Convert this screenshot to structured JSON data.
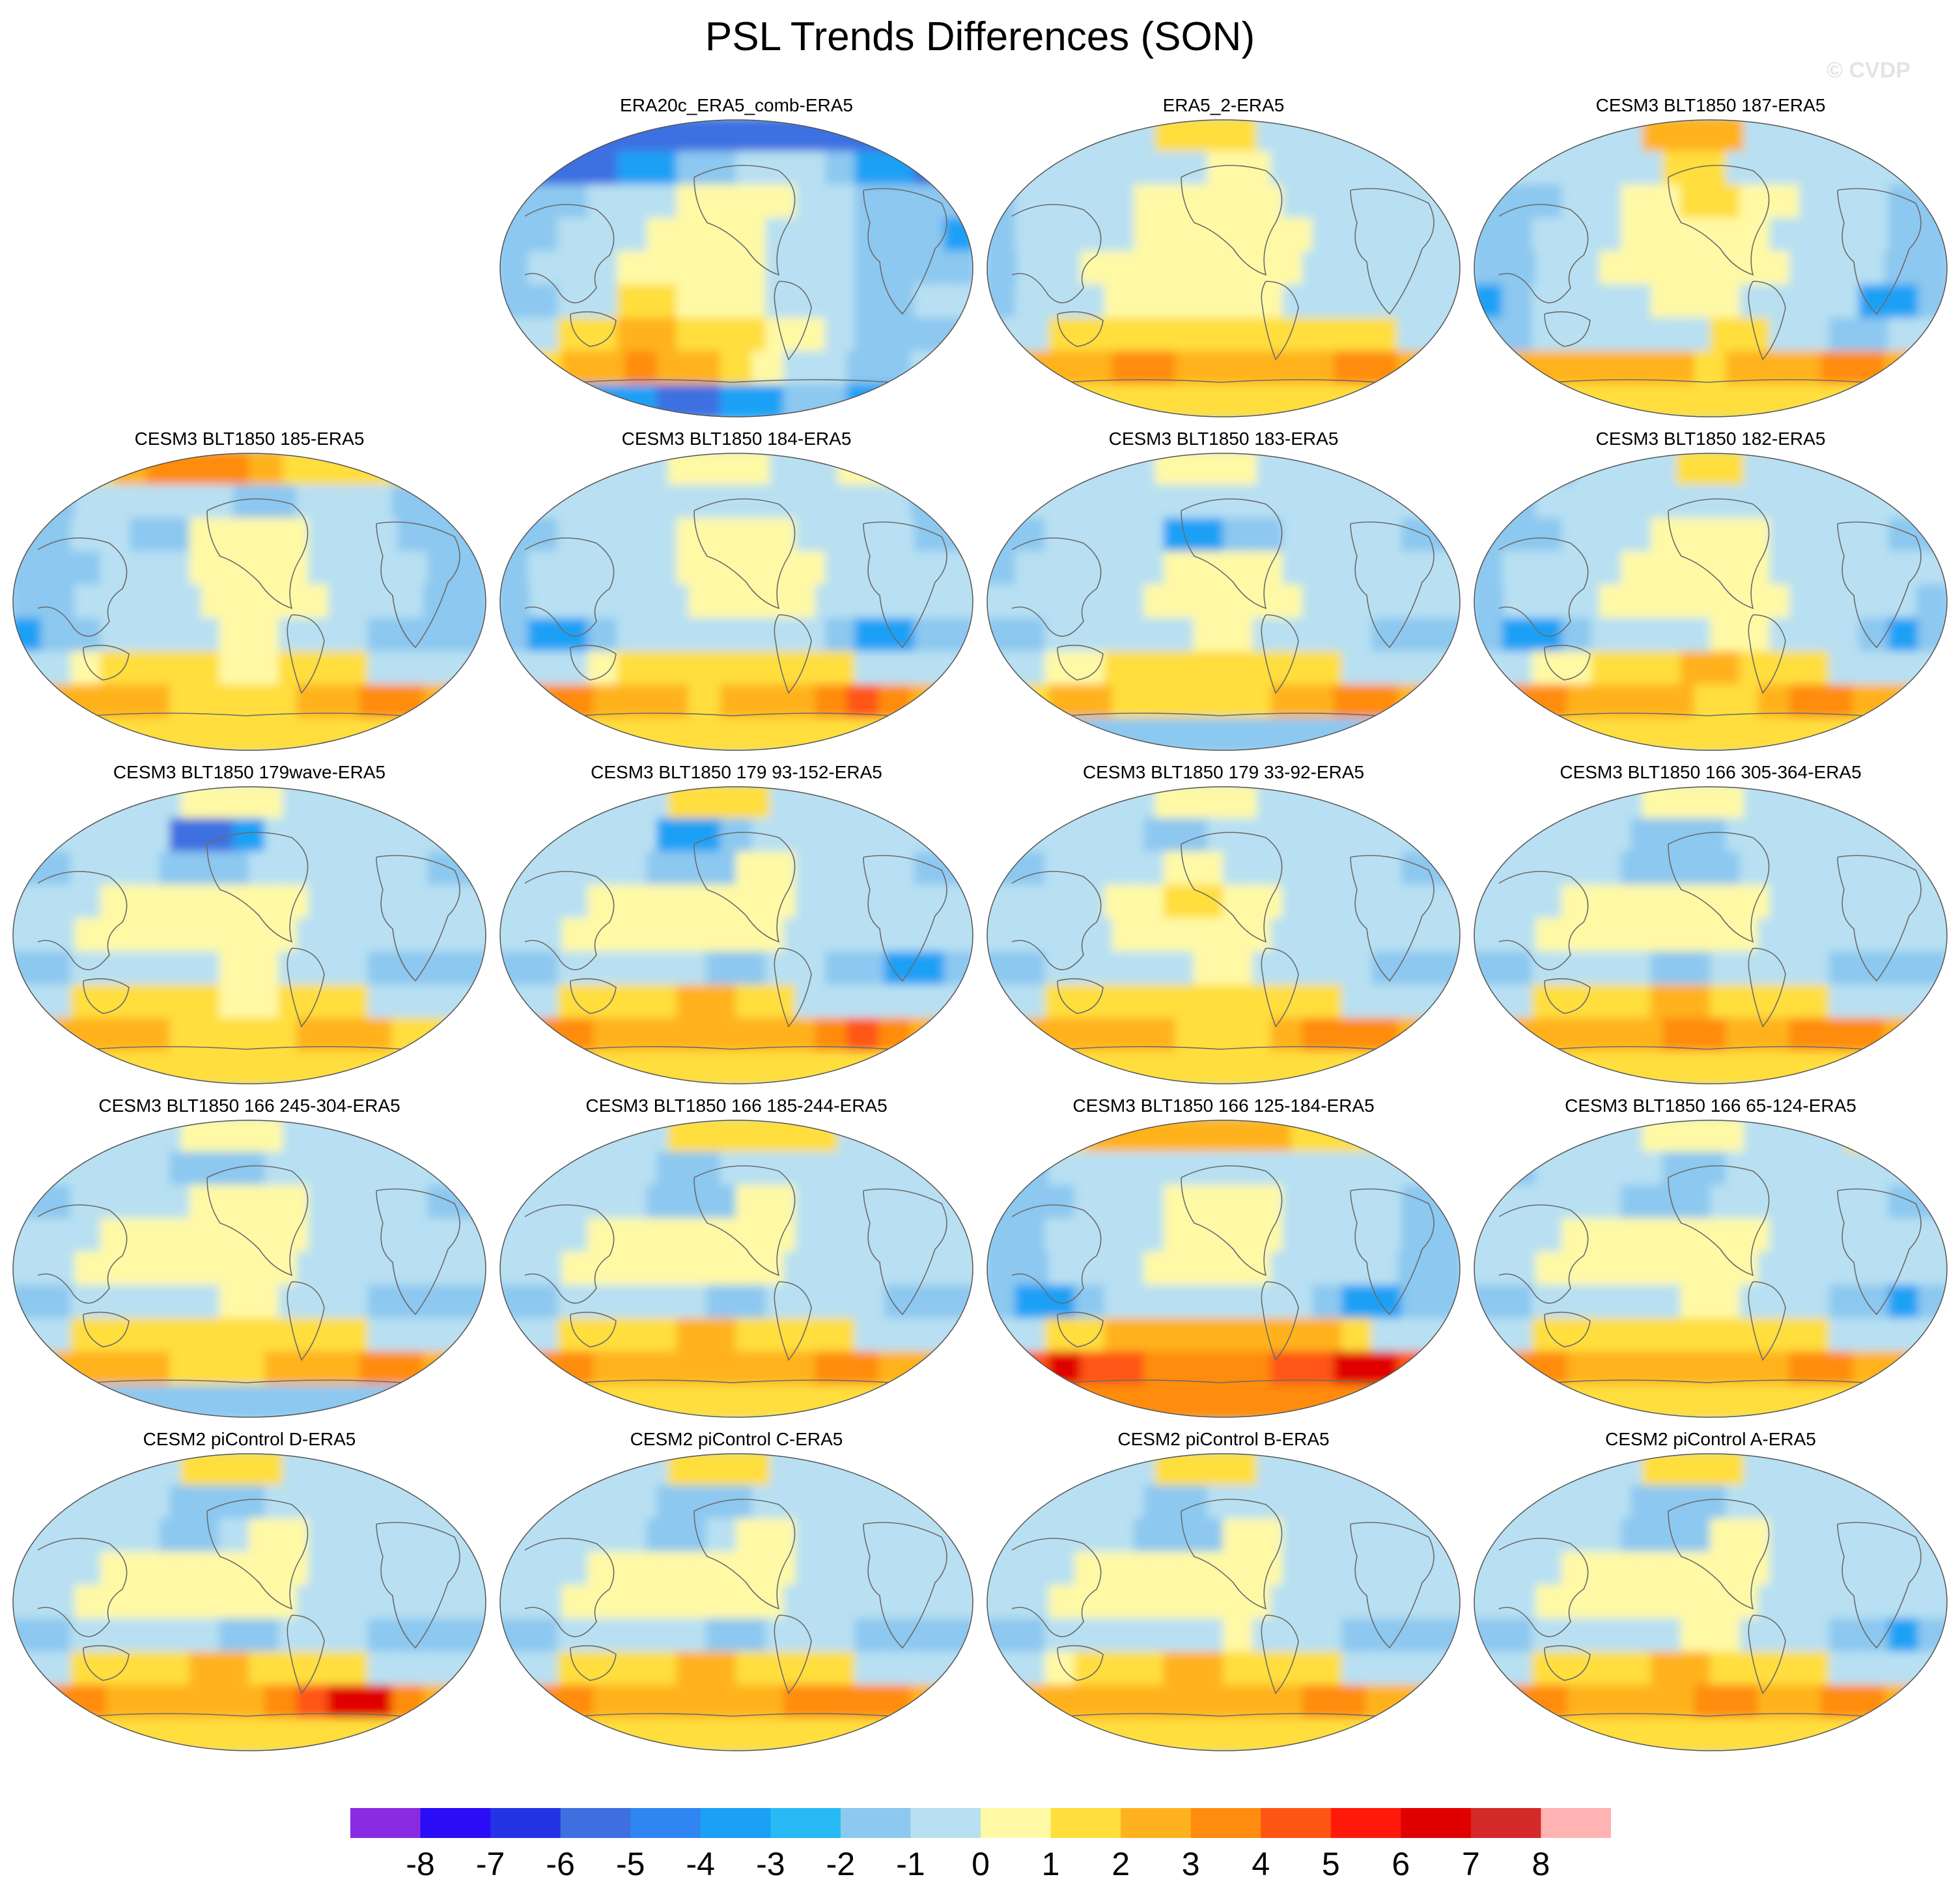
{
  "title": "PSL Trends Differences (SON)",
  "watermark": "© CVDP",
  "panels": [
    {
      "title": "ERA20c_ERA5_comb-ERA5",
      "row": 0,
      "col": 1,
      "cells": [
        "BBBBBBBBBBBBBBB",
        "BBBBCCDDEEEDCCBB",
        "DDDEEEFFFFEEDDDD",
        "DDEEEFFFFEEEDDDC",
        "DEEEFFFFFEEEDDDD",
        "DDEEGGFFFEEEDDEE",
        "EEGGHHGGGFFEDDDD",
        "EGHHIHHGFEEDDEE",
        "DDCCCBBCCDDCCDD"
      ]
    },
    {
      "title": "ERA5_2-ERA5",
      "row": 0,
      "col": 2,
      "cells": [
        "EEEEEGGGEEEEEE",
        "EEEEEEEFFEEEEEE",
        "DEEEEFFFFFEEEEEE",
        "DEEEEFFFFFFEEEEE",
        "DEEFFFFFFFEEEEE",
        "DEEEFFFFFFEEEEEE",
        "EEGGGGGGGGGGGEE",
        "GHHHIIHHHHHIIHG",
        "FGGGGGGGGGGGGGF"
      ]
    },
    {
      "title": "CESM3 BLT1850 187-ERA5",
      "row": 0,
      "col": 3,
      "cells": [
        "EEEEEHHHEEEEEE",
        "DEEEEEGGEEEEEEE",
        "DDDEEFFGGFFEEEDD",
        "DDEEEFFFFFEEEEDD",
        "DDEEFFFFFFEEEDD",
        "CDEEEEFFFEEEECCD",
        "DDEEEEEEGGEEDDEE",
        "GHHHHHHGHHHIIHG",
        "FGGGGGGGGGGGGGF"
      ]
    },
    {
      "title": "CESM3 BLT1850 185-ERA5",
      "row": 1,
      "col": 0,
      "cells": [
        "FGGHIIIHGGGGGG",
        "DDEEEEEDDEEEDDD",
        "DDEEDDFFFFEEEDDD",
        "DDDEEEFFFFEEEEDD",
        "DDEEEEFFFFEEEDD",
        "CDDEEEEFFEEEDDDD",
        "EEFGGGGFFGGGEEEE",
        "GHHHHGGGGHHIIHG",
        "FGGGGGGGGGGGGGF"
      ]
    },
    {
      "title": "CESM3 BLT1850 184-ERA5",
      "row": 1,
      "col": 1,
      "cells": [
        "EEEEEFFFEEFFGE",
        "DEEEEEEEEEEEEDE",
        "DDEEEEFFFFEEEEDD",
        "DEEEEEFFFFFEEEEE",
        "DEEEEEFFFFEEEEE",
        "DCCDEEEEEEEDCCDD",
        "EEEFGGGGGGGGEEEE",
        "HIIHHHGHHHIJIHG",
        "GGGGGGGGGGGGGGF"
      ]
    },
    {
      "title": "CESM3 BLT1850 183-ERA5",
      "row": 1,
      "col": 2,
      "cells": [
        "EEEEEFFFEEEEEE",
        "DEEEEEEEEEEEEEE",
        "DDEEEECCDDEEEEDD",
        "DEEEEEFFFFEEEEEE",
        "EEEEEFFFFFEEEEE",
        "DDEEEEEFFEEEEDDD",
        "EEFFGGGGGGGGEEEE",
        "GGHHGGGGGHHIIHG",
        "DDDDDDDDDDDDDDD"
      ]
    },
    {
      "title": "CESM3 BLT1850 182-ERA5",
      "row": 1,
      "col": 3,
      "cells": [
        "DDDEEEGGEEEEEE",
        "DDEEEEEEEEEEEEE",
        "DDDEEEFFFFEEEEDD",
        "DEEEEFFFFFEEEEEE",
        "DEEEFFFFFFEEEED",
        "DCCDEEEEFFEEEDCD",
        "EEFFGGGHHGGGEEEE",
        "HIIHHHHGGHIIHHG",
        "GGGGGGGGGGGGGGF"
      ]
    },
    {
      "title": "CESM3 BLT1850 179wave-ERA5",
      "row": 2,
      "col": 0,
      "cells": [
        "EEEEEFFFEEEEEE",
        "DEEEEBBCEEEEEEE",
        "DDEEEDDDEEEEEEDD",
        "EEEFFFFFFFEEEEEE",
        "EEFFFFFFFEEEEEE",
        "DDEEEEEFFEEEDDDD",
        "EEGGGGGFFGGGEEEE",
        "GHHHHGGGGHHHGGG",
        "FFGGGGGGGGGGGFF"
      ]
    },
    {
      "title": "CESM3 BLT1850 179 93-152-ERA5",
      "row": 2,
      "col": 1,
      "cells": [
        "EEEEEGGGEEEEEE",
        "DEEEECCDEEEEEEE",
        "EEEEEDDDFFEEEEDD",
        "EEEFFFFFFFEEEEEE",
        "EEFFFFFFFEEEEEE",
        "DDEEEEEDDEEDDCCD",
        "EEGGGGHHGGEEEEEE",
        "HIIHHHHHHHIJIHG",
        "GGGGGGGGGGGGGGF"
      ]
    },
    {
      "title": "CESM3 BLT1850 179 33-92-ERA5",
      "row": 2,
      "col": 2,
      "cells": [
        "EEEEEFFFEEEEEE",
        "DEEEEDDEEEEEEEE",
        "DDEEEEFFEEEEEEDD",
        "EEEEFFGGFFEEEEEE",
        "EEEEFFFFFEEEEEE",
        "DDEEEEEFFEEEEDDD",
        "EEGGGGGGGGGGEEEE",
        "GHHHHHGGGHIIIHG",
        "FGGGGGGGGGGGGGF"
      ]
    },
    {
      "title": "CESM3 BLT1850 166 305-364-ERA5",
      "row": 2,
      "col": 3,
      "cells": [
        "EEEEEFFFEEEEEE",
        "DEEEEDDDEEEEEEE",
        "EEEEEDDDDEEEEEEE",
        "EEEFFFFFFFEEEEEE",
        "EEFFFFFFFEEEEEE",
        "DDEEEEDDEEEEDDDD",
        "EEGGGGHHGGGGEEEE",
        "GHHHHHIIHHIIIHG",
        "FGGGGGGGGGGGGGF"
      ]
    },
    {
      "title": "CESM3 BLT1850 166 245-304-ERA5",
      "row": 3,
      "col": 0,
      "cells": [
        "EEEEEFFFEEEEEE",
        "DEEEEDDDEEEEEEE",
        "DDEEEEFFFFEEEEDD",
        "EEEFFFFFFFEEEEEE",
        "EEFFFFFFFEEEEEE",
        "DDEEEEEFFEEEDDDD",
        "EEGGGGGGGGGGEEEE",
        "GHHHHGGGHHHIIHG",
        "DDDDDDDDDDDDDDD"
      ]
    },
    {
      "title": "CESM3 BLT1850 166 185-244-ERA5",
      "row": 3,
      "col": 1,
      "cells": [
        "EEEEEGGGGGEEEE",
        "DEEEEDDEEEEEEEE",
        "EEEEEDDDFFEEEEEE",
        "EEEFFFFFFFEEEEEE",
        "EEFFFFFFFEEEEEE",
        "DDEEEEEDDEEEEDDD",
        "EEGGGGHHGGGGEEEE",
        "HIIHHHHHHHIIHHG",
        "FGGGGGGGGGGGGGF"
      ]
    },
    {
      "title": "CESM3 BLT1850 166 125-184-ERA5",
      "row": 3,
      "col": 2,
      "cells": [
        "FFGHHHHHHGGGGF",
        "DDEEEEEEEEEEEEE",
        "DDDEEEFFFFEEEEDD",
        "DDEEEEFFFFEEEEDD",
        "DDEEEFFFFEEEEDD",
        "DCCDEEEEEEEDCCDD",
        "EEGGHHHHHHHHGEEE",
        "IJKJJIIIIJJKKJI",
        "HIIIIIIIIIIIIIH"
      ]
    },
    {
      "title": "CESM3 BLT1850 166 65-124-ERA5",
      "row": 3,
      "col": 3,
      "cells": [
        "EEEEEFFFEEEGGE",
        "DDEEEEDDEEEEEEE",
        "EEEEEDDDEEEEEEDD",
        "EEEFFFFFFFEEEEEE",
        "EEFFFFFFFEEEEEE",
        "DDEEEEEFFEEEDDCD",
        "EEGGGGGGGGGGEEEE",
        "HIIHHHHHHHIIHHG",
        "FGGGGGGGGGGGGGF"
      ]
    },
    {
      "title": "CESM2 piControl D-ERA5",
      "row": 4,
      "col": 0,
      "cells": [
        "EEEEEGGGEEEEEE",
        "DEEEEDDDEEEEEEE",
        "EEEEEDDEFFEEEEEE",
        "EEEFFFFFFFEEEEEE",
        "EEFFFFFFFEEEEEE",
        "DDEEEEEDDEEEDDDD",
        "EEGGGGHHGGGGEEEE",
        "HIIHHHHHIJKKIHG",
        "GGGGGGGGGGGGGGF"
      ]
    },
    {
      "title": "CESM2 piControl C-ERA5",
      "row": 4,
      "col": 1,
      "cells": [
        "EEEEEGGGEEEEEE",
        "DEEEEDDDEEEEEEE",
        "EEEEEDDEFFEEEEEE",
        "EEEFFFFFFFEEEEEE",
        "EEFFFFFFFEEEEEE",
        "DDEEEEEDDEEEDDDD",
        "EEGGGGHHGGGGEEEE",
        "HIIHHHHHHIIIIHG",
        "GGGGGGGGGGGGGGF"
      ]
    },
    {
      "title": "CESM2 piControl B-ERA5",
      "row": 4,
      "col": 2,
      "cells": [
        "EEEEEGGGEEEEEE",
        "DEEEEDDEEEEEEEE",
        "EEEEEDDDFFEEEEEE",
        "EEEFFFFFFFEEEEEE",
        "EEFFFFFFFEEEEEE",
        "DDEEEEEEFEEEDDDD",
        "EEFGGGHHGGGGEEEE",
        "GHHHHHHHHHIIHHG",
        "FGGGGGGGGGGGGGF"
      ]
    },
    {
      "title": "CESM2 piControl A-ERA5",
      "row": 4,
      "col": 3,
      "cells": [
        "EEEEEGGGEEEEEE",
        "DEEEEDDDEEEEEEE",
        "EEEEEDDDFFEEEEEE",
        "EEEFFFFFFFEEEEEE",
        "EEFFFFFFFEEEEEE",
        "DDEEEEEFFEEEDDCD",
        "EEGGGGHHGGGGEEEE",
        "HIIHHHHIIHHIIHG",
        "GGGGGGGGGGGGGGF"
      ]
    }
  ],
  "colorbar": {
    "colors": [
      "#8a2be2",
      "#2a0cf7",
      "#2433e6",
      "#3e6fe0",
      "#2f86f2",
      "#1aa0f5",
      "#27baf4",
      "#8cc8f0",
      "#b8e0f2",
      "#fff9a6",
      "#ffde3e",
      "#ffb21f",
      "#ff8c0f",
      "#ff5512",
      "#ff1a0a",
      "#e00000",
      "#d42a2a",
      "#ffb3b3"
    ],
    "labels": [
      "-8",
      "-7",
      "-6",
      "-5",
      "-4",
      "-3",
      "-2",
      "-1",
      "0",
      "1",
      "2",
      "3",
      "4",
      "5",
      "6",
      "7",
      "8"
    ]
  }
}
